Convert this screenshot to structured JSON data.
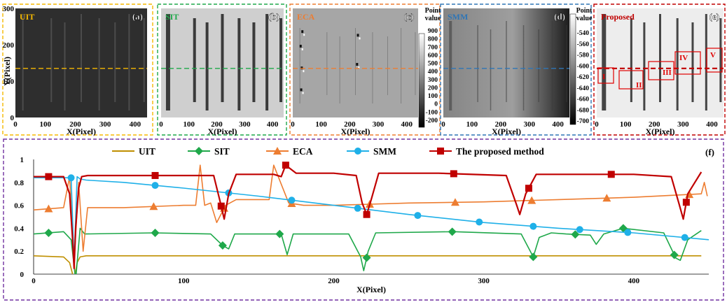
{
  "chart_data": [
    {
      "type": "heatmap",
      "panel": "(a)",
      "title": "UIT",
      "xlabel": "X(Pixel)",
      "ylabel": "Y(Pixel)",
      "xticks": [
        "0",
        "100",
        "200",
        "300",
        "400"
      ],
      "yticks": [
        "300",
        "200",
        "100",
        "0"
      ],
      "xlim": [
        0,
        440
      ],
      "ylim": [
        0,
        300
      ],
      "colors": {
        "border": "#F5B800",
        "title": "#F5B800",
        "guide": "#F5B800"
      },
      "guide_y": 135
    },
    {
      "type": "heatmap",
      "panel": "(b)",
      "title": "SIT",
      "xlabel": "X(Pixel)",
      "xticks": [
        "0",
        "100",
        "200",
        "300",
        "400"
      ],
      "xlim": [
        0,
        440
      ],
      "ylim": [
        0,
        300
      ],
      "colors": {
        "border": "#1FA84A",
        "title": "#1FA84A",
        "guide": "#1FA84A"
      },
      "guide_y": 135
    },
    {
      "type": "heatmap",
      "panel": "(c)",
      "title": "ECA",
      "xlabel": "X(Pixel)",
      "xticks": [
        "0",
        "100",
        "200",
        "300",
        "400"
      ],
      "xlim": [
        0,
        440
      ],
      "ylim": [
        0,
        300
      ],
      "colors": {
        "border": "#ED7D31",
        "title": "#ED7D31",
        "guide": "#ED7D31"
      },
      "guide_y": 135,
      "colorbar": {
        "title": [
          "Point",
          "value"
        ],
        "ticks": [
          "900",
          "800",
          "700",
          "600",
          "500",
          "400",
          "300",
          "200",
          "100",
          "0",
          "-100",
          "-200"
        ]
      }
    },
    {
      "type": "heatmap",
      "panel": "(d)",
      "title": "SMM",
      "xlabel": "X(Pixel)",
      "xticks": [
        "0",
        "100",
        "200",
        "300",
        "400"
      ],
      "xlim": [
        0,
        440
      ],
      "ylim": [
        0,
        300
      ],
      "colors": {
        "border": "#2E75B6",
        "title": "#2E75B6",
        "guide": "#2E75B6"
      },
      "guide_y": 135,
      "colorbar": {
        "title": [
          "Point",
          "value"
        ],
        "ticks": [
          "-540",
          "-560",
          "-580",
          "-600",
          "-620",
          "-640",
          "-660",
          "-680",
          "-700"
        ]
      }
    },
    {
      "type": "heatmap",
      "panel": "(e)",
      "title": "Proposed",
      "xlabel": "X(Pixel)",
      "xticks": [
        "0",
        "100",
        "200",
        "300",
        "400"
      ],
      "xlim": [
        0,
        440
      ],
      "ylim": [
        0,
        300
      ],
      "colors": {
        "border": "#C00000",
        "title": "#C00000",
        "guide": "#C00000"
      },
      "guide_y": 135,
      "regions": [
        "I",
        "II",
        "III",
        "IV",
        "V"
      ]
    },
    {
      "type": "line",
      "panel": "(f)",
      "xlabel": "X(Pixel)",
      "ylabel": "",
      "xlim": [
        0,
        450
      ],
      "ylim": [
        0,
        1
      ],
      "xticks": [
        0,
        100,
        200,
        300,
        400
      ],
      "yticks": [
        0,
        0.2,
        0.4,
        0.6,
        0.8,
        1
      ],
      "legend_position": "top",
      "border_color": "#7030A0",
      "series": [
        {
          "name": "UIT",
          "color": "#BF8F00",
          "marker": "none",
          "x": [
            0,
            20,
            24,
            27,
            29,
            31,
            35,
            60,
            100,
            150,
            200,
            250,
            300,
            350,
            400,
            445
          ],
          "y": [
            0.16,
            0.15,
            0.1,
            -0.05,
            0.1,
            0.15,
            0.16,
            0.16,
            0.16,
            0.16,
            0.16,
            0.16,
            0.16,
            0.16,
            0.16,
            0.16
          ],
          "marker_x": []
        },
        {
          "name": "SIT",
          "color": "#1FA84A",
          "marker": "diamond",
          "x": [
            0,
            20,
            25,
            28,
            31,
            34,
            80,
            118,
            126,
            130,
            134,
            165,
            169,
            173,
            210,
            218,
            220,
            223,
            228,
            280,
            325,
            333,
            337,
            345,
            355,
            371,
            375,
            380,
            393,
            420,
            428,
            431,
            436,
            445
          ],
          "y": [
            0.35,
            0.37,
            0.3,
            -0.05,
            0.4,
            0.35,
            0.36,
            0.35,
            0.25,
            0.22,
            0.35,
            0.35,
            0.17,
            0.35,
            0.35,
            0.15,
            0.03,
            0.2,
            0.36,
            0.37,
            0.35,
            0.15,
            0.32,
            0.36,
            0.35,
            0.34,
            0.26,
            0.35,
            0.4,
            0.36,
            0.14,
            0.12,
            0.3,
            0.38
          ],
          "marker_x": [
            10,
            81,
            126,
            164,
            222,
            279,
            333,
            361,
            393,
            427
          ]
        },
        {
          "name": "ECA",
          "color": "#ED7D31",
          "marker": "triangle",
          "x": [
            0,
            20,
            24,
            27,
            30,
            33,
            36,
            60,
            100,
            108,
            111,
            114,
            118,
            122,
            128,
            135,
            157,
            160,
            170,
            180,
            200,
            250,
            300,
            350,
            400,
            445,
            447,
            449
          ],
          "y": [
            0.56,
            0.58,
            0.85,
            0.1,
            0.8,
            0.2,
            0.58,
            0.58,
            0.6,
            0.6,
            0.95,
            0.6,
            0.62,
            0.45,
            0.6,
            0.65,
            0.65,
            0.95,
            0.62,
            0.6,
            0.6,
            0.62,
            0.63,
            0.65,
            0.67,
            0.7,
            0.8,
            0.68
          ],
          "marker_x": [
            10,
            80,
            127,
            172,
            224,
            281,
            332,
            382,
            437
          ]
        },
        {
          "name": "SMM",
          "color": "#1FB0E8",
          "marker": "circle",
          "x": [
            0,
            25,
            27,
            29,
            31,
            35,
            60,
            100,
            150,
            200,
            250,
            300,
            350,
            400,
            450
          ],
          "y": [
            0.84,
            0.84,
            0.1,
            0.85,
            0.83,
            0.82,
            0.8,
            0.75,
            0.68,
            0.6,
            0.52,
            0.45,
            0.4,
            0.36,
            0.3
          ],
          "marker_x": [
            25,
            81,
            130,
            172,
            216,
            256,
            297,
            333,
            364,
            396,
            434
          ]
        },
        {
          "name": "The proposed method",
          "color": "#C00000",
          "marker": "square",
          "x": [
            0,
            20,
            24,
            26,
            27,
            28,
            30,
            32,
            36,
            60,
            100,
            120,
            124,
            127,
            130,
            135,
            160,
            165,
            168,
            175,
            200,
            215,
            219,
            222,
            225,
            230,
            270,
            315,
            322,
            324,
            328,
            335,
            400,
            425,
            430,
            433,
            436,
            445
          ],
          "y": [
            0.85,
            0.85,
            0.7,
            0.3,
            0.05,
            0.4,
            0.75,
            0.85,
            0.86,
            0.86,
            0.86,
            0.86,
            0.65,
            0.48,
            0.7,
            0.87,
            0.87,
            0.85,
            0.95,
            0.88,
            0.88,
            0.86,
            0.62,
            0.52,
            0.65,
            0.88,
            0.88,
            0.86,
            0.6,
            0.52,
            0.7,
            0.87,
            0.87,
            0.85,
            0.62,
            0.48,
            0.7,
            0.89
          ],
          "marker_x": [
            10,
            81,
            125,
            168,
            222,
            280,
            330,
            385,
            435
          ]
        }
      ]
    }
  ]
}
